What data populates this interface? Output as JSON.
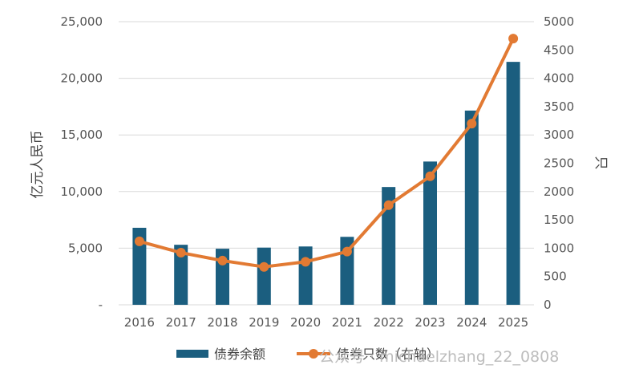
{
  "chart_data": {
    "type": "bar+line",
    "categories": [
      "2016",
      "2017",
      "2018",
      "2019",
      "2020",
      "2021",
      "2022",
      "2023",
      "2024",
      "2025"
    ],
    "series": [
      {
        "name": "债券余额",
        "type": "bar",
        "axis": "left",
        "color": "#1b5e7f",
        "values": [
          6800,
          5300,
          4950,
          5050,
          5150,
          6000,
          10400,
          12650,
          17150,
          21450
        ]
      },
      {
        "name": "债券只数（右轴）",
        "type": "line",
        "axis": "right",
        "color": "#e27a33",
        "values": [
          1120,
          920,
          780,
          670,
          760,
          940,
          1760,
          2270,
          3200,
          4700
        ]
      }
    ],
    "ylabel_left": "亿元人民币",
    "ylabel_right": "只",
    "ylim_left": [
      0,
      25000
    ],
    "ylim_right": [
      0,
      5000
    ],
    "yticks_left": [
      "-",
      "5,000",
      "10,000",
      "15,000",
      "20,000",
      "25,000"
    ],
    "yticks_right": [
      "0",
      "500",
      "1000",
      "1500",
      "2000",
      "2500",
      "3000",
      "3500",
      "4000",
      "4500",
      "5000"
    ],
    "grid": true,
    "legend_position": "bottom"
  },
  "watermark": {
    "text": "公众号 · michaelzhang_22_0808"
  }
}
